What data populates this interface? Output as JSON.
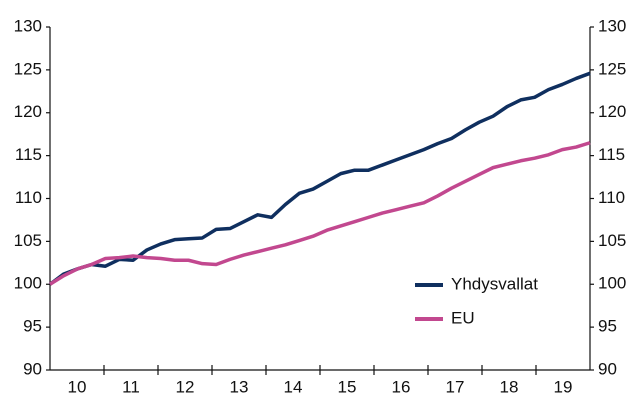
{
  "chart_data": {
    "type": "line",
    "categories": [
      null,
      "10",
      null,
      null,
      null,
      "11",
      null,
      null,
      null,
      "12",
      null,
      null,
      null,
      "13",
      null,
      null,
      null,
      "14",
      null,
      null,
      null,
      "15",
      null,
      null,
      null,
      "16",
      null,
      null,
      null,
      "17",
      null,
      null,
      null,
      "18",
      null,
      null,
      null,
      "19",
      null,
      null
    ],
    "series": [
      {
        "name": "Yhdysvallat",
        "color": "#0f2f5f",
        "values": [
          100,
          101.2,
          101.8,
          102.3,
          102.1,
          102.9,
          102.8,
          104.0,
          104.7,
          105.2,
          105.3,
          105.4,
          106.4,
          106.5,
          107.3,
          108.1,
          107.8,
          109.3,
          110.6,
          111.1,
          112.0,
          112.9,
          113.3,
          113.3,
          113.9,
          114.5,
          115.1,
          115.7,
          116.4,
          117.0,
          118.0,
          118.9,
          119.6,
          120.7,
          121.5,
          121.8,
          122.7,
          123.3,
          124.0,
          124.6
        ]
      },
      {
        "name": "EU",
        "color": "#c2488f",
        "values": [
          100,
          101.0,
          101.8,
          102.3,
          103.0,
          103.1,
          103.3,
          103.1,
          103.0,
          102.8,
          102.8,
          102.4,
          102.3,
          102.9,
          103.4,
          103.8,
          104.2,
          104.6,
          105.1,
          105.6,
          106.3,
          106.8,
          107.3,
          107.8,
          108.3,
          108.7,
          109.1,
          109.5,
          110.3,
          111.2,
          112.0,
          112.8,
          113.6,
          114.0,
          114.4,
          114.7,
          115.1,
          115.7,
          116.0,
          116.5
        ]
      }
    ],
    "ylim": [
      90,
      130
    ],
    "yticks": [
      90,
      95,
      100,
      105,
      110,
      115,
      120,
      125,
      130
    ],
    "legend": "lower right"
  }
}
